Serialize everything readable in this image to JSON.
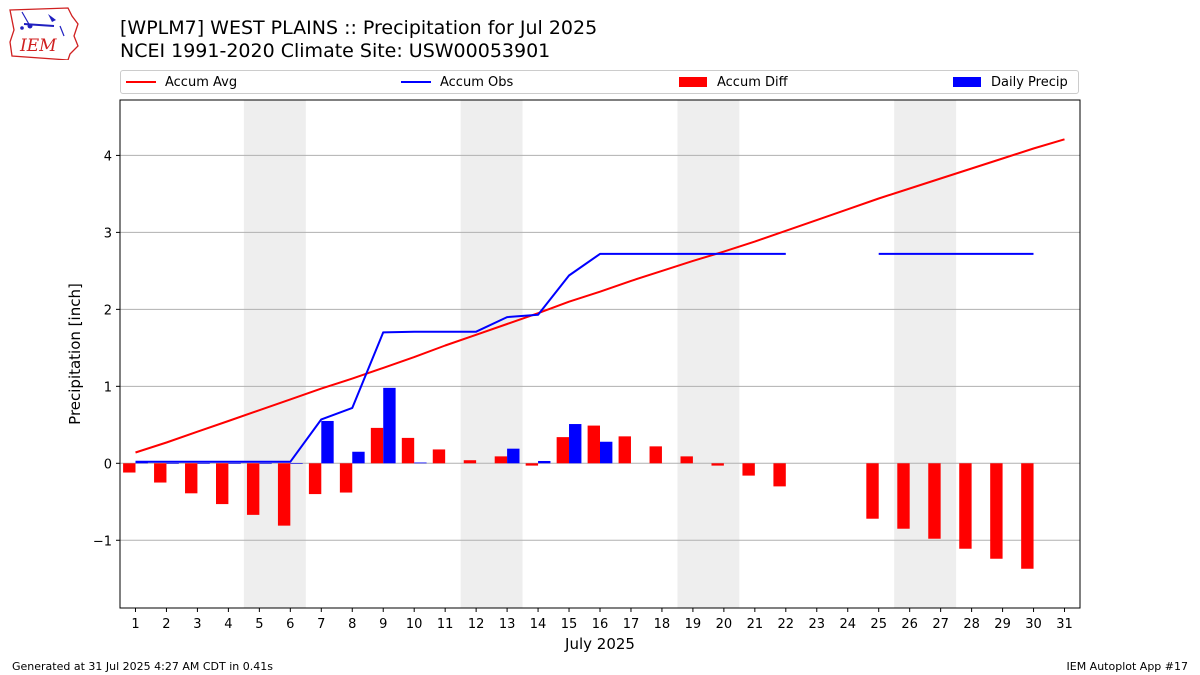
{
  "header": {
    "title_line1": "[WPLM7] WEST PLAINS :: Precipitation for Jul 2025",
    "title_line2": "NCEI 1991-2020 Climate Site: USW00053901"
  },
  "logo": {
    "text": "IEM",
    "icon": "iowa-state-outline-logo"
  },
  "legend": {
    "placement": "top, above plot",
    "items": [
      {
        "label": "Accum Avg",
        "color": "#ff0000",
        "kind": "line"
      },
      {
        "label": "Accum Obs",
        "color": "#0000ff",
        "kind": "line"
      },
      {
        "label": "Accum Diff",
        "color": "#ff0000",
        "kind": "bar"
      },
      {
        "label": "Daily Precip",
        "color": "#0000ff",
        "kind": "bar"
      }
    ]
  },
  "footer": {
    "left": "Generated at 31 Jul 2025 4:27 AM CDT in 0.41s",
    "right": "IEM Autoplot App #17"
  },
  "chart_data": {
    "type": "bar",
    "xlabel": "July 2025",
    "ylabel": "Precipitation [inch]",
    "ylim": [
      -1.88,
      4.72
    ],
    "xlim": [
      0.5,
      31.5
    ],
    "yticks": [
      -1,
      0,
      1,
      2,
      3,
      4
    ],
    "ytick_labels": [
      "−1",
      "0",
      "1",
      "2",
      "3",
      "4"
    ],
    "categories": [
      "1",
      "2",
      "3",
      "4",
      "5",
      "6",
      "7",
      "8",
      "9",
      "10",
      "11",
      "12",
      "13",
      "14",
      "15",
      "16",
      "17",
      "18",
      "19",
      "20",
      "21",
      "22",
      "23",
      "24",
      "25",
      "26",
      "27",
      "28",
      "29",
      "30",
      "31"
    ],
    "grid": "horizontal",
    "weekend_shading": [
      [
        4.5,
        6.5
      ],
      [
        11.5,
        13.5
      ],
      [
        18.5,
        20.5
      ],
      [
        25.5,
        27.5
      ]
    ],
    "series": [
      {
        "name": "Accum Avg",
        "kind": "line",
        "color": "#ff0000",
        "x": [
          1,
          2,
          3,
          4,
          5,
          6,
          7,
          8,
          9,
          10,
          11,
          12,
          13,
          14,
          15,
          16,
          17,
          18,
          19,
          20,
          21,
          22,
          23,
          24,
          25,
          26,
          27,
          28,
          29,
          30,
          31
        ],
        "values": [
          0.14,
          0.27,
          0.41,
          0.55,
          0.69,
          0.83,
          0.97,
          1.1,
          1.24,
          1.38,
          1.53,
          1.67,
          1.81,
          1.95,
          2.1,
          2.23,
          2.37,
          2.5,
          2.63,
          2.75,
          2.88,
          3.02,
          3.16,
          3.3,
          3.44,
          3.57,
          3.7,
          3.83,
          3.96,
          4.09,
          4.21
        ]
      },
      {
        "name": "Accum Obs",
        "kind": "line",
        "color": "#0000ff",
        "x": [
          1,
          2,
          3,
          4,
          5,
          6,
          7,
          8,
          9,
          10,
          11,
          12,
          13,
          14,
          15,
          16,
          17,
          18,
          19,
          20,
          21,
          22,
          23,
          24,
          25,
          26,
          27,
          28,
          29,
          30,
          31
        ],
        "values": [
          0.02,
          0.02,
          0.02,
          0.02,
          0.02,
          0.02,
          0.57,
          0.72,
          1.7,
          1.71,
          1.71,
          1.71,
          1.9,
          1.93,
          2.44,
          2.72,
          2.72,
          2.72,
          2.72,
          2.72,
          2.72,
          2.72,
          null,
          null,
          2.72,
          2.72,
          2.72,
          2.72,
          2.72,
          2.72,
          null
        ]
      },
      {
        "name": "Accum Diff",
        "kind": "bar",
        "color": "#ff0000",
        "x": [
          1,
          2,
          3,
          4,
          5,
          6,
          7,
          8,
          9,
          10,
          11,
          12,
          13,
          14,
          15,
          16,
          17,
          18,
          19,
          20,
          21,
          22,
          25,
          26,
          27,
          28,
          29,
          30
        ],
        "values": [
          -0.12,
          -0.25,
          -0.39,
          -0.53,
          -0.67,
          -0.81,
          -0.4,
          -0.38,
          0.46,
          0.33,
          0.18,
          0.04,
          0.09,
          -0.03,
          0.34,
          0.49,
          0.35,
          0.22,
          0.09,
          -0.03,
          -0.16,
          -0.3,
          -0.72,
          -0.85,
          -0.98,
          -1.11,
          -1.24,
          -1.37
        ]
      },
      {
        "name": "Daily Precip",
        "kind": "bar",
        "color": "#0000ff",
        "x": [
          1,
          2,
          3,
          4,
          5,
          6,
          7,
          8,
          9,
          10,
          13,
          14,
          15,
          16
        ],
        "values": [
          0.02,
          0.0,
          0.0,
          0.0,
          0.0,
          0.0,
          0.55,
          0.15,
          0.98,
          0.01,
          0.19,
          0.03,
          0.51,
          0.28
        ]
      }
    ]
  }
}
